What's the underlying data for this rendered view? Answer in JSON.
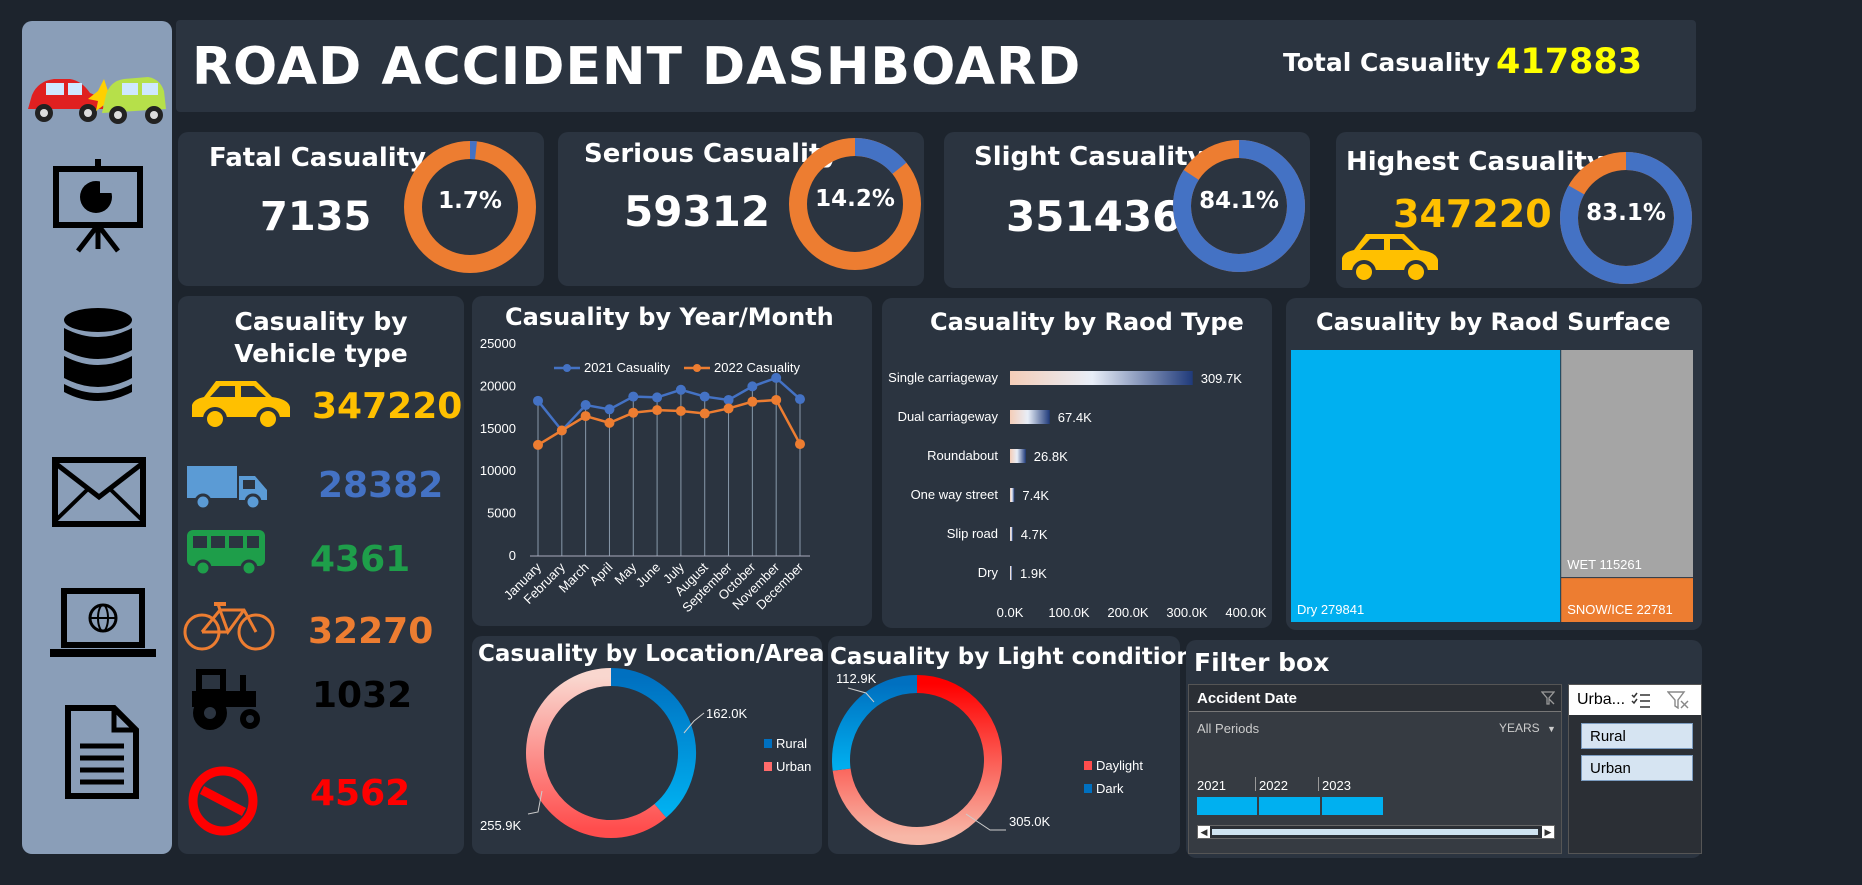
{
  "header": {
    "title": "ROAD ACCIDENT DASHBOARD",
    "total_label": "Total Casuality",
    "total_value": "417883"
  },
  "kpis": [
    {
      "title": "Fatal Casuality",
      "value": "7135",
      "percent": "1.7%",
      "fraction": 0.017
    },
    {
      "title": "Serious Casuality",
      "value": "59312",
      "percent": "14.2%",
      "fraction": 0.142
    },
    {
      "title": "Slight Casuality",
      "value": "351436",
      "percent": "84.1%",
      "fraction": 0.841
    },
    {
      "title": "Highest Casuality",
      "value": "347220",
      "percent": "83.1%",
      "fraction": 0.831
    }
  ],
  "vehicle": {
    "title": "Casuality by Vehicle type",
    "items": [
      {
        "icon": "car-icon",
        "value": "347220",
        "color": "#ffc000"
      },
      {
        "icon": "truck-icon",
        "value": "28382",
        "color": "#4472c4"
      },
      {
        "icon": "bus-icon",
        "value": "4361",
        "color": "#1e9e4a"
      },
      {
        "icon": "bicycle-icon",
        "value": "32270",
        "color": "#ed7d31"
      },
      {
        "icon": "tractor-icon",
        "value": "1032",
        "color": "#000000"
      },
      {
        "icon": "no-entry-icon",
        "value": "4562",
        "color": "#ff0000"
      }
    ]
  },
  "colors": {
    "orange": "#ed7d31",
    "blue": "#4472c4",
    "yellow": "#ffff00",
    "card": "#2b3440",
    "sky": "#00b0f0",
    "grey": "#a5a5a5"
  },
  "filter": {
    "title": "Filter box",
    "timeline_title": "Accident Date",
    "periods_label": "All Periods",
    "unit_label": "YEARS",
    "years": [
      "2021",
      "2022",
      "2023"
    ],
    "slicer_header": "Urba...",
    "slicer_items": [
      "Rural",
      "Urban"
    ]
  },
  "chart_data": [
    {
      "type": "line",
      "title": "Casuality by Year/Month",
      "categories": [
        "January",
        "February",
        "March",
        "April",
        "May",
        "June",
        "July",
        "August",
        "September",
        "October",
        "November",
        "December"
      ],
      "series": [
        {
          "name": "2021 Casuality",
          "color": "#4472c4",
          "values": [
            18300,
            14800,
            17800,
            17300,
            18800,
            18700,
            19600,
            18800,
            18400,
            20000,
            21000,
            18500
          ]
        },
        {
          "name": "2022 Casuality",
          "color": "#ed7d31",
          "values": [
            13100,
            14800,
            16500,
            15700,
            16900,
            17200,
            17100,
            16800,
            17400,
            18200,
            18400,
            13200
          ]
        }
      ],
      "y_ticks": [
        "0",
        "5000",
        "10000",
        "15000",
        "20000",
        "25000"
      ],
      "ylim": [
        0,
        25000
      ]
    },
    {
      "type": "bar",
      "orientation": "horizontal",
      "title": "Casuality by Raod Type",
      "categories": [
        "Single carriageway",
        "Dual carriageway",
        "Roundabout",
        "One way street",
        "Slip road",
        "Dry"
      ],
      "values": [
        309.7,
        67.4,
        26.8,
        7.4,
        4.7,
        1.9
      ],
      "data_labels": [
        "309.7K",
        "67.4K",
        "26.8K",
        "7.4K",
        "4.7K",
        "1.9K"
      ],
      "x_ticks": [
        "0.0K",
        "100.0K",
        "200.0K",
        "300.0K",
        "400.0K"
      ],
      "xlim": [
        0,
        400
      ]
    },
    {
      "type": "treemap",
      "title": "Casuality by Raod Surface",
      "items": [
        {
          "label": "Dry",
          "value": 279841,
          "text": "Dry 279841",
          "color": "#00b0f0"
        },
        {
          "label": "WET",
          "value": 115261,
          "text": "WET 115261",
          "color": "#a5a5a5"
        },
        {
          "label": "SNOW/ICE",
          "value": 22781,
          "text": "SNOW/ICE 22781",
          "color": "#ed7d31"
        }
      ]
    },
    {
      "type": "pie",
      "title": "Casuality by Location/Area",
      "legend": [
        "Rural",
        "Urban"
      ],
      "values": [
        162.0,
        255.9
      ],
      "data_labels": [
        "162.0K",
        "255.9K"
      ]
    },
    {
      "type": "pie",
      "title": "Casuality by Light condition",
      "legend": [
        "Daylight",
        "Dark"
      ],
      "values": [
        305.0,
        112.9
      ],
      "data_labels": [
        "305.0K",
        "112.9K"
      ]
    }
  ]
}
